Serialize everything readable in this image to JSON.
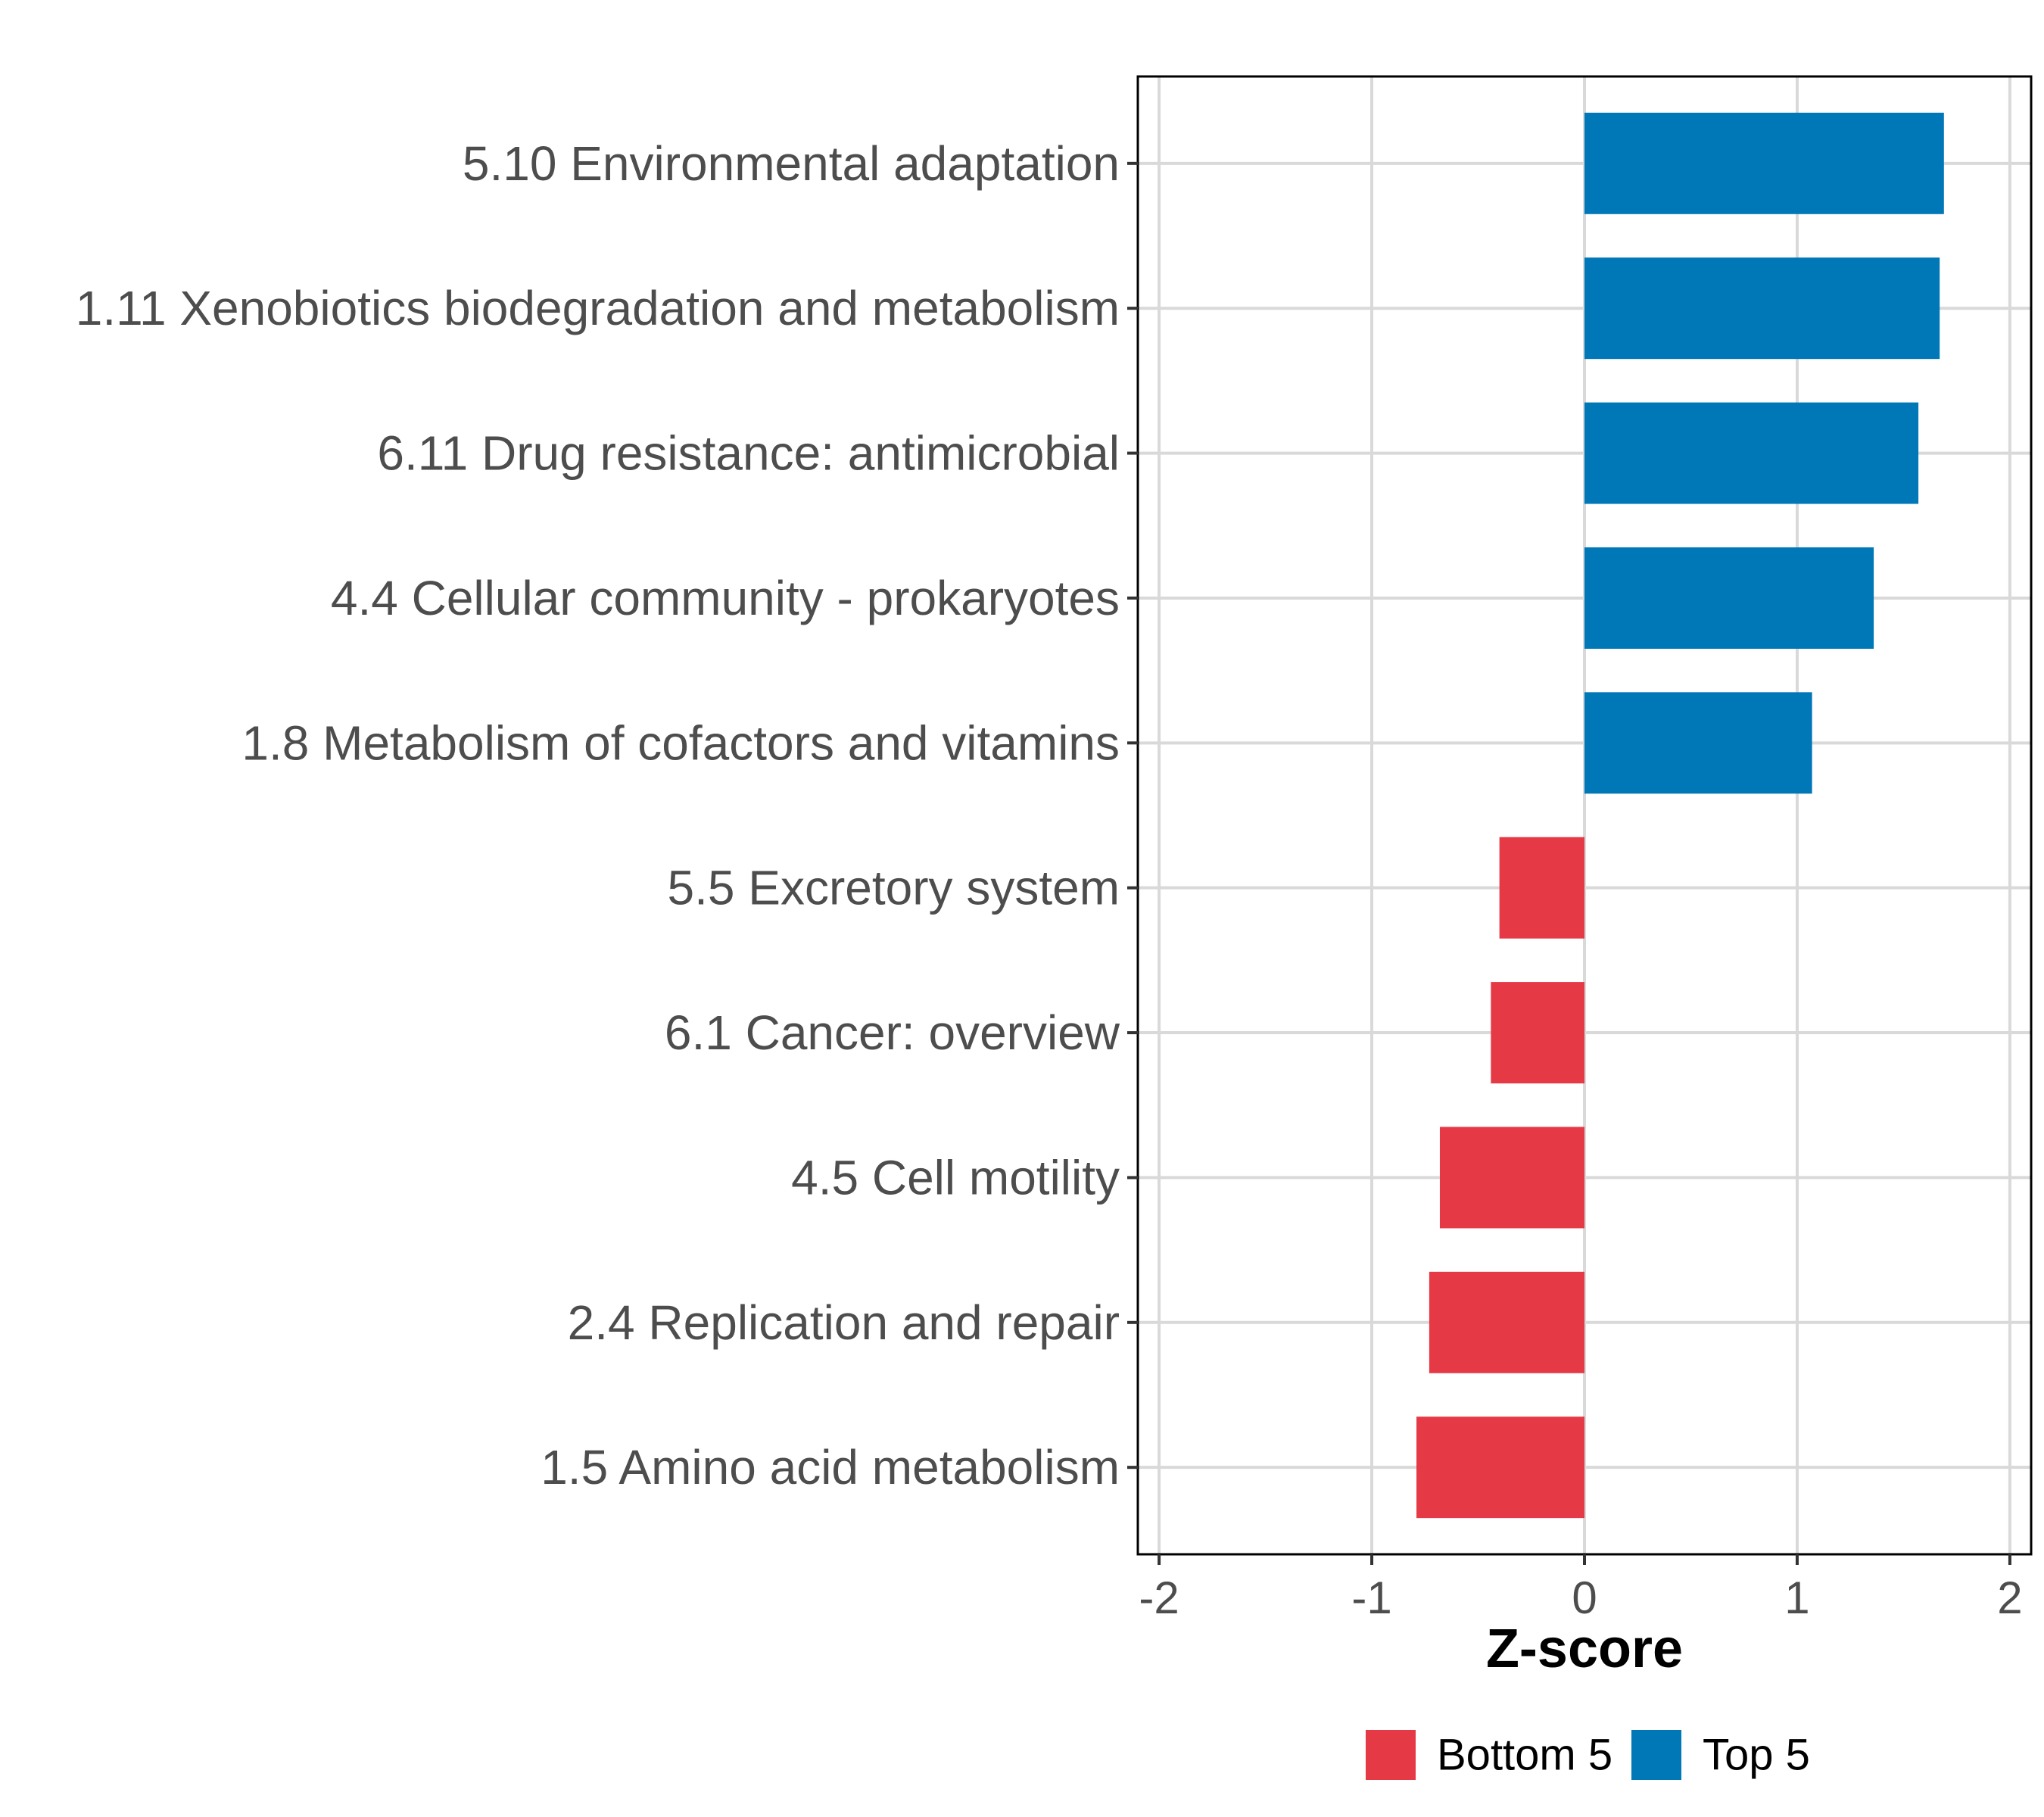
{
  "chart_data": {
    "type": "bar",
    "orientation": "horizontal",
    "title": "",
    "xlabel": "Z-score",
    "ylabel": "",
    "xlim": [
      -2.1,
      2.1
    ],
    "xticks": [
      -2,
      -1,
      0,
      1,
      2
    ],
    "xtick_labels": [
      "-2",
      "-1",
      "0",
      "1",
      "2"
    ],
    "grid": true,
    "categories": [
      "5.10 Environmental adaptation",
      "1.11 Xenobiotics biodegradation and metabolism",
      "6.11 Drug resistance: antimicrobial",
      "4.4 Cellular community - prokaryotes",
      "1.8 Metabolism of cofactors and vitamins",
      "5.5 Excretory system",
      "6.1 Cancer: overview",
      "4.5 Cell motility",
      "2.4 Replication and repair",
      "1.5 Amino acid metabolism"
    ],
    "values": [
      1.69,
      1.67,
      1.57,
      1.36,
      1.07,
      -0.4,
      -0.44,
      -0.68,
      -0.73,
      -0.79
    ],
    "groups": [
      "Top 5",
      "Top 5",
      "Top 5",
      "Top 5",
      "Top 5",
      "Bottom 5",
      "Bottom 5",
      "Bottom 5",
      "Bottom 5",
      "Bottom 5"
    ],
    "legend": {
      "position": "bottom",
      "entries": [
        {
          "label": "Bottom 5",
          "color": "#e63946"
        },
        {
          "label": "Top 5",
          "color": "#0077b6"
        }
      ]
    },
    "colors": {
      "Top 5": "#0077b6",
      "Bottom 5": "#e63946"
    }
  }
}
